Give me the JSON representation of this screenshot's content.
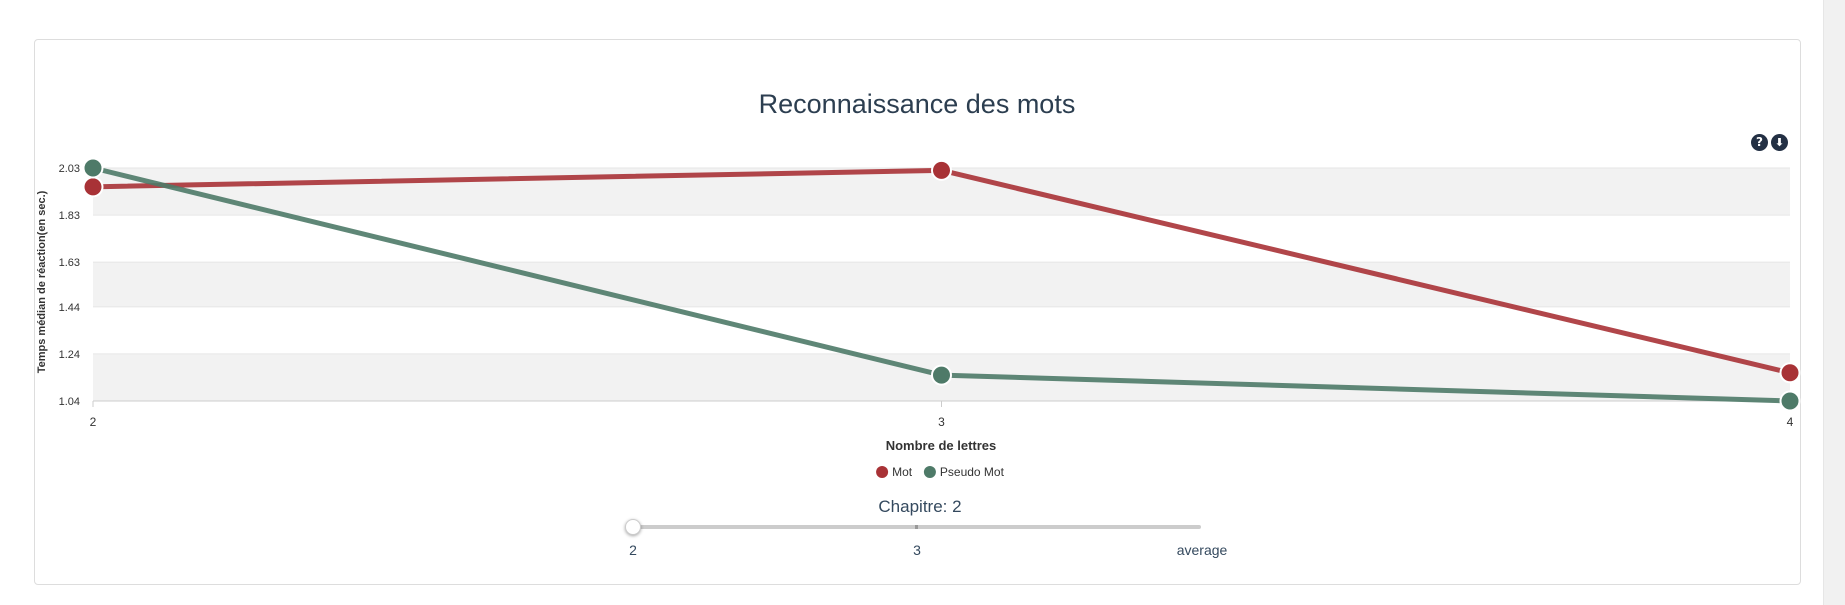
{
  "chart_data": {
    "type": "line",
    "title": "Reconnaissance des mots",
    "xlabel": "Nombre de lettres",
    "ylabel": "Temps médian de réaction(en sec.)",
    "categories": [
      "2",
      "3",
      "4"
    ],
    "series": [
      {
        "name": "Mot",
        "color": "#a83236",
        "values": [
          1.95,
          2.02,
          1.16
        ]
      },
      {
        "name": "Pseudo Mot",
        "color": "#4e7a68",
        "values": [
          2.03,
          1.15,
          1.04
        ]
      }
    ],
    "yticks": [
      "1.04",
      "1.24",
      "1.44",
      "1.63",
      "1.83",
      "2.03"
    ],
    "ylim": [
      1.04,
      2.03
    ],
    "grid": "alternating bands",
    "legend_position": "bottom-center"
  },
  "tools": {
    "help_icon": "?",
    "download_icon": "⬇"
  },
  "slider": {
    "label": "Chapitre: 2",
    "steps": [
      "2",
      "3",
      "average"
    ],
    "selected_index": 0
  }
}
